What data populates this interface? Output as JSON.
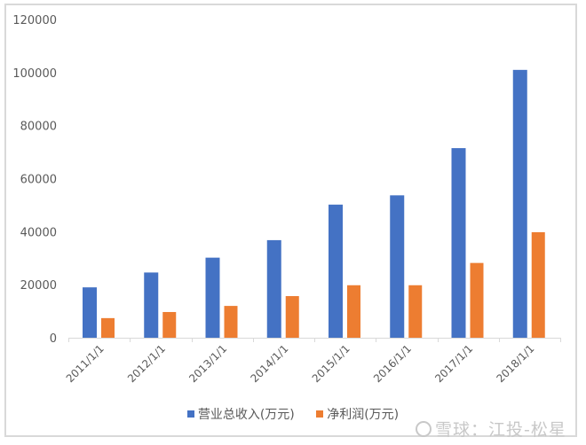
{
  "chart_data": {
    "type": "bar",
    "title": "",
    "xlabel": "",
    "ylabel": "",
    "categories": [
      "2011/1/1",
      "2012/1/1",
      "2013/1/1",
      "2014/1/1",
      "2015/1/1",
      "2016/1/1",
      "2017/1/1",
      "2018/1/1"
    ],
    "series": [
      {
        "name": "营业总收入(万元)",
        "color": "#4472C4",
        "values": [
          19000,
          24600,
          30200,
          36800,
          50200,
          53700,
          71500,
          101000
        ]
      },
      {
        "name": "净利润(万元)",
        "color": "#ED7D31",
        "values": [
          7400,
          9700,
          12000,
          15700,
          19800,
          19800,
          28200,
          39800
        ]
      }
    ],
    "ylim": [
      0,
      120000
    ],
    "yticks": [
      "0",
      "20000",
      "40000",
      "60000",
      "80000",
      "100000",
      "120000"
    ],
    "grid": false,
    "legend_position": "bottom",
    "x_tick_rotation": -45
  },
  "legend": {
    "items": [
      {
        "label": "营业总收入(万元)",
        "color": "#4472C4"
      },
      {
        "label": "净利润(万元)",
        "color": "#ED7D31"
      }
    ]
  },
  "watermark": {
    "text": "雪球：江投-松星"
  }
}
